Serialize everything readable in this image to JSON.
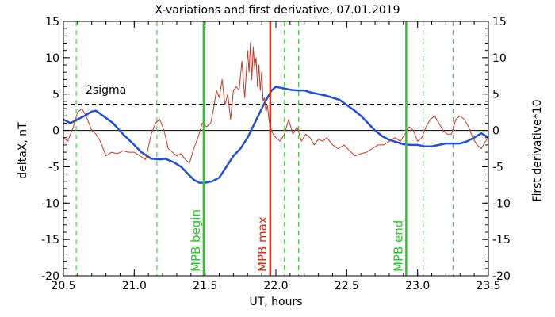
{
  "chart_data": {
    "type": "line",
    "title": "X-variations and first derivative, 07.01.2019",
    "xlabel": "UT, hours",
    "ylabel_left": "deltaX, nT",
    "ylabel_right": "First derivative*10",
    "xlim": [
      20.5,
      23.5
    ],
    "ylim": [
      -20,
      15
    ],
    "x_ticks": [
      "20.5",
      "21.0",
      "21.5",
      "22.0",
      "22.5",
      "23.0",
      "23.5"
    ],
    "y_ticks": [
      "-20",
      "-15",
      "-10",
      "-5",
      "0",
      "5",
      "10",
      "15"
    ],
    "colors": {
      "deltax": "#1f4fd6",
      "derivative": "#c0392b",
      "mpb_lines": "#22cc22",
      "max_line": "#e02a10",
      "dashed_green": "#22cc22"
    },
    "sigma_label": "2sigma",
    "sigma_level": 3.6,
    "vertical_markers": [
      {
        "x": 21.49,
        "label": "MPB begin",
        "kind": "mpb"
      },
      {
        "x": 21.96,
        "label": "MPB max",
        "kind": "max"
      },
      {
        "x": 22.92,
        "label": "MPB end",
        "kind": "mpb"
      }
    ],
    "dashed_verticals": [
      20.59,
      21.16,
      22.06,
      22.16,
      23.04,
      23.25
    ],
    "series": [
      {
        "key": "deltax",
        "x": [
          20.5,
          20.55,
          20.6,
          20.65,
          20.7,
          20.73,
          20.78,
          20.85,
          20.92,
          21.0,
          21.05,
          21.12,
          21.18,
          21.22,
          21.28,
          21.33,
          21.38,
          21.42,
          21.46,
          21.5,
          21.55,
          21.6,
          21.65,
          21.7,
          21.75,
          21.8,
          21.85,
          21.9,
          21.94,
          21.97,
          22.0,
          22.05,
          22.1,
          22.15,
          22.2,
          22.25,
          22.3,
          22.35,
          22.4,
          22.45,
          22.5,
          22.55,
          22.6,
          22.65,
          22.7,
          22.75,
          22.8,
          22.85,
          22.9,
          22.95,
          23.0,
          23.05,
          23.1,
          23.15,
          23.2,
          23.25,
          23.3,
          23.35,
          23.4,
          23.45,
          23.5
        ],
        "y": [
          1.5,
          1.0,
          1.5,
          2.0,
          2.6,
          2.7,
          2.0,
          1.0,
          -0.5,
          -2.0,
          -3.0,
          -3.9,
          -4.0,
          -3.9,
          -4.4,
          -5.0,
          -6.0,
          -6.8,
          -7.2,
          -7.2,
          -7.0,
          -6.5,
          -5.0,
          -3.5,
          -2.5,
          -1.0,
          1.0,
          3.0,
          4.5,
          5.5,
          6.0,
          5.8,
          5.6,
          5.5,
          5.5,
          5.2,
          5.0,
          4.8,
          4.5,
          4.2,
          3.5,
          2.8,
          2.0,
          1.0,
          0.0,
          -0.8,
          -1.3,
          -1.6,
          -1.9,
          -2.0,
          -2.0,
          -2.2,
          -2.2,
          -2.0,
          -1.8,
          -1.8,
          -1.8,
          -1.5,
          -1.0,
          -0.4,
          -1.0
        ]
      },
      {
        "key": "derivative",
        "x": [
          20.5,
          20.53,
          20.57,
          20.6,
          20.63,
          20.66,
          20.7,
          20.73,
          20.76,
          20.8,
          20.84,
          20.88,
          20.92,
          20.96,
          21.0,
          21.04,
          21.08,
          21.12,
          21.15,
          21.18,
          21.21,
          21.24,
          21.27,
          21.3,
          21.33,
          21.36,
          21.39,
          21.42,
          21.45,
          21.48,
          21.51,
          21.54,
          21.56,
          21.58,
          21.6,
          21.62,
          21.64,
          21.66,
          21.68,
          21.7,
          21.72,
          21.74,
          21.76,
          21.78,
          21.8,
          21.81,
          21.82,
          21.83,
          21.84,
          21.85,
          21.86,
          21.87,
          21.88,
          21.89,
          21.9,
          21.91,
          21.92,
          21.93,
          21.94,
          21.95,
          21.96,
          21.98,
          22.0,
          22.03,
          22.06,
          22.09,
          22.12,
          22.15,
          22.18,
          22.21,
          22.24,
          22.27,
          22.3,
          22.33,
          22.36,
          22.4,
          22.44,
          22.48,
          22.52,
          22.56,
          22.6,
          22.64,
          22.68,
          22.72,
          22.76,
          22.8,
          22.84,
          22.88,
          22.91,
          22.94,
          22.97,
          23.0,
          23.03,
          23.06,
          23.09,
          23.12,
          23.15,
          23.18,
          23.21,
          23.24,
          23.27,
          23.3,
          23.33,
          23.36,
          23.39,
          23.42,
          23.45,
          23.48,
          23.5
        ],
        "y": [
          -1.0,
          -1.5,
          0.5,
          2.5,
          3.0,
          2.0,
          0.0,
          -0.5,
          -1.5,
          -3.5,
          -3.0,
          -3.2,
          -2.8,
          -3.0,
          -3.0,
          -3.5,
          -4.0,
          -0.5,
          1.0,
          1.5,
          0.0,
          -2.5,
          -3.0,
          -3.5,
          -3.2,
          -4.0,
          -4.5,
          -2.5,
          -1.0,
          1.0,
          0.5,
          1.0,
          3.0,
          5.5,
          4.5,
          7.0,
          3.5,
          5.0,
          1.5,
          5.5,
          6.0,
          5.5,
          9.5,
          4.5,
          11.0,
          8.0,
          12.0,
          7.0,
          11.5,
          8.5,
          10.0,
          6.0,
          9.0,
          5.5,
          8.0,
          4.0,
          4.5,
          2.5,
          3.5,
          1.5,
          0.5,
          -0.5,
          -1.0,
          -1.5,
          -0.5,
          1.5,
          -0.5,
          0.5,
          -1.5,
          -0.5,
          -1.0,
          -2.0,
          -1.2,
          -1.5,
          -1.0,
          -2.0,
          -2.5,
          -2.0,
          -2.8,
          -3.5,
          -3.2,
          -3.0,
          -2.5,
          -2.0,
          -2.0,
          -1.5,
          -1.0,
          -1.5,
          -0.5,
          0.5,
          0.0,
          -1.5,
          -1.0,
          0.5,
          1.5,
          2.0,
          1.0,
          0.0,
          -0.5,
          -0.5,
          1.5,
          2.0,
          1.5,
          0.5,
          -1.0,
          -2.0,
          -2.5,
          -1.5,
          -1.0
        ]
      }
    ]
  }
}
